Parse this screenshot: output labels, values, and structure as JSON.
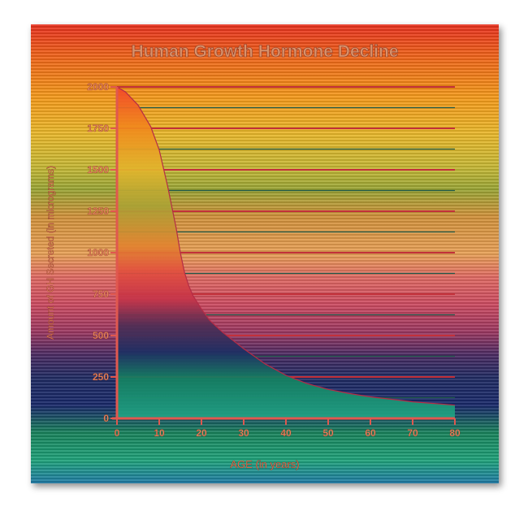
{
  "chart_data": {
    "type": "area",
    "title": "Human Growth Hormone Decline",
    "xlabel": "AGE (in years)",
    "ylabel": "Amount of GH Secreted (in micrograms)",
    "xlim": [
      0,
      80
    ],
    "ylim": [
      0,
      2000
    ],
    "xticks": [
      "0",
      "10",
      "20",
      "30",
      "40",
      "50",
      "60",
      "70",
      "80"
    ],
    "yticks": [
      "0",
      "250",
      "500",
      "750",
      "1000",
      "1250",
      "1500",
      "1750",
      "2000"
    ],
    "grid": true,
    "series": [
      {
        "x": [
          0,
          2,
          5,
          8,
          10,
          12,
          14,
          15,
          16,
          17,
          18,
          20,
          22,
          25,
          30,
          35,
          40,
          45,
          50,
          55,
          60,
          65,
          70,
          75,
          80
        ],
        "y": [
          2000,
          1970,
          1890,
          1760,
          1620,
          1400,
          1150,
          1000,
          880,
          800,
          740,
          660,
          590,
          520,
          420,
          330,
          260,
          210,
          175,
          150,
          130,
          115,
          100,
          90,
          80
        ]
      }
    ],
    "colors": {
      "title": "#d9926a",
      "axis": "#e0584f",
      "tick_label": "#e8875e",
      "major_grid": "#c2303a",
      "minor_grid": "#1f5a4a"
    }
  }
}
